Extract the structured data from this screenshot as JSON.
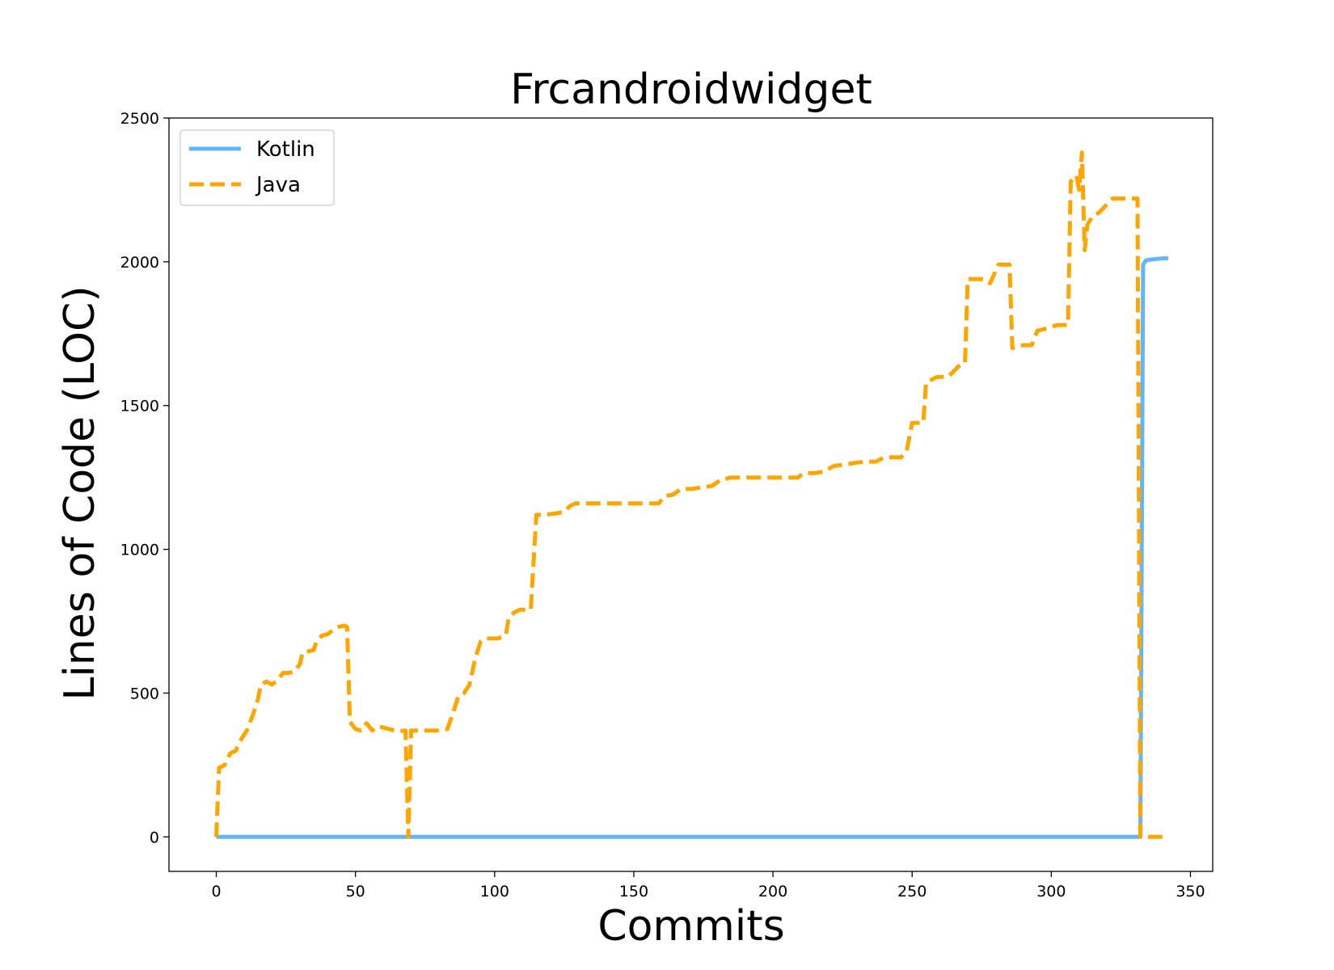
{
  "chart_data": {
    "type": "line",
    "title": "Frcandroidwidget",
    "xlabel": "Commits",
    "ylabel": "Lines of Code (LOC)",
    "xlim": [
      -17,
      358
    ],
    "ylim": [
      -120,
      2500
    ],
    "xticks": [
      0,
      50,
      100,
      150,
      200,
      250,
      300,
      350
    ],
    "yticks": [
      0,
      500,
      1000,
      1500,
      2000,
      2500
    ],
    "grid": false,
    "legend_position": "top-left",
    "series": [
      {
        "name": "Kotlin",
        "color": "#64b5f6",
        "style": "solid",
        "points": [
          [
            0,
            0
          ],
          [
            332,
            0
          ],
          [
            333,
            1990
          ],
          [
            334,
            2005
          ],
          [
            336,
            2008
          ],
          [
            338,
            2010
          ],
          [
            340,
            2012
          ],
          [
            342,
            2012
          ]
        ]
      },
      {
        "name": "Java",
        "color": "#ffa500",
        "style": "dashed",
        "points": [
          [
            0,
            0
          ],
          [
            1,
            240
          ],
          [
            3,
            250
          ],
          [
            5,
            290
          ],
          [
            7,
            300
          ],
          [
            9,
            340
          ],
          [
            11,
            370
          ],
          [
            13,
            420
          ],
          [
            15,
            480
          ],
          [
            16,
            530
          ],
          [
            18,
            540
          ],
          [
            20,
            530
          ],
          [
            22,
            545
          ],
          [
            24,
            570
          ],
          [
            26,
            570
          ],
          [
            28,
            575
          ],
          [
            30,
            600
          ],
          [
            31,
            640
          ],
          [
            33,
            645
          ],
          [
            35,
            650
          ],
          [
            36,
            680
          ],
          [
            38,
            700
          ],
          [
            40,
            705
          ],
          [
            42,
            720
          ],
          [
            44,
            730
          ],
          [
            46,
            735
          ],
          [
            47,
            730
          ],
          [
            48,
            400
          ],
          [
            50,
            375
          ],
          [
            52,
            370
          ],
          [
            54,
            395
          ],
          [
            56,
            370
          ],
          [
            58,
            385
          ],
          [
            60,
            380
          ],
          [
            62,
            375
          ],
          [
            64,
            370
          ],
          [
            66,
            368
          ],
          [
            68,
            370
          ],
          [
            69,
            0
          ],
          [
            70,
            370
          ],
          [
            72,
            370
          ],
          [
            76,
            370
          ],
          [
            80,
            370
          ],
          [
            83,
            375
          ],
          [
            85,
            430
          ],
          [
            87,
            490
          ],
          [
            89,
            500
          ],
          [
            91,
            530
          ],
          [
            93,
            620
          ],
          [
            95,
            680
          ],
          [
            97,
            690
          ],
          [
            101,
            690
          ],
          [
            104,
            700
          ],
          [
            105,
            760
          ],
          [
            107,
            780
          ],
          [
            109,
            790
          ],
          [
            113,
            790
          ],
          [
            115,
            1120
          ],
          [
            118,
            1120
          ],
          [
            122,
            1125
          ],
          [
            125,
            1130
          ],
          [
            127,
            1150
          ],
          [
            129,
            1160
          ],
          [
            135,
            1160
          ],
          [
            145,
            1160
          ],
          [
            155,
            1160
          ],
          [
            159,
            1160
          ],
          [
            161,
            1185
          ],
          [
            164,
            1190
          ],
          [
            167,
            1210
          ],
          [
            171,
            1210
          ],
          [
            174,
            1215
          ],
          [
            178,
            1220
          ],
          [
            181,
            1240
          ],
          [
            185,
            1250
          ],
          [
            195,
            1250
          ],
          [
            205,
            1250
          ],
          [
            209,
            1250
          ],
          [
            211,
            1265
          ],
          [
            215,
            1265
          ],
          [
            218,
            1270
          ],
          [
            222,
            1290
          ],
          [
            226,
            1295
          ],
          [
            229,
            1300
          ],
          [
            233,
            1305
          ],
          [
            237,
            1305
          ],
          [
            240,
            1320
          ],
          [
            244,
            1320
          ],
          [
            246,
            1320
          ],
          [
            248,
            1340
          ],
          [
            250,
            1440
          ],
          [
            254,
            1440
          ],
          [
            255,
            1580
          ],
          [
            257,
            1590
          ],
          [
            259,
            1600
          ],
          [
            261,
            1600
          ],
          [
            263,
            1600
          ],
          [
            265,
            1620
          ],
          [
            268,
            1650
          ],
          [
            269,
            1650
          ],
          [
            270,
            1940
          ],
          [
            276,
            1940
          ],
          [
            278,
            1925
          ],
          [
            281,
            1990
          ],
          [
            285,
            1990
          ],
          [
            286,
            1700
          ],
          [
            290,
            1710
          ],
          [
            293,
            1710
          ],
          [
            295,
            1760
          ],
          [
            299,
            1770
          ],
          [
            302,
            1780
          ],
          [
            306,
            1780
          ],
          [
            307,
            2280
          ],
          [
            309,
            2300
          ],
          [
            310,
            2250
          ],
          [
            311,
            2380
          ],
          [
            312,
            2040
          ],
          [
            313,
            2130
          ],
          [
            315,
            2160
          ],
          [
            317,
            2170
          ],
          [
            319,
            2190
          ],
          [
            322,
            2220
          ],
          [
            328,
            2220
          ],
          [
            331,
            2220
          ],
          [
            332,
            0
          ],
          [
            341,
            0
          ]
        ]
      }
    ]
  }
}
